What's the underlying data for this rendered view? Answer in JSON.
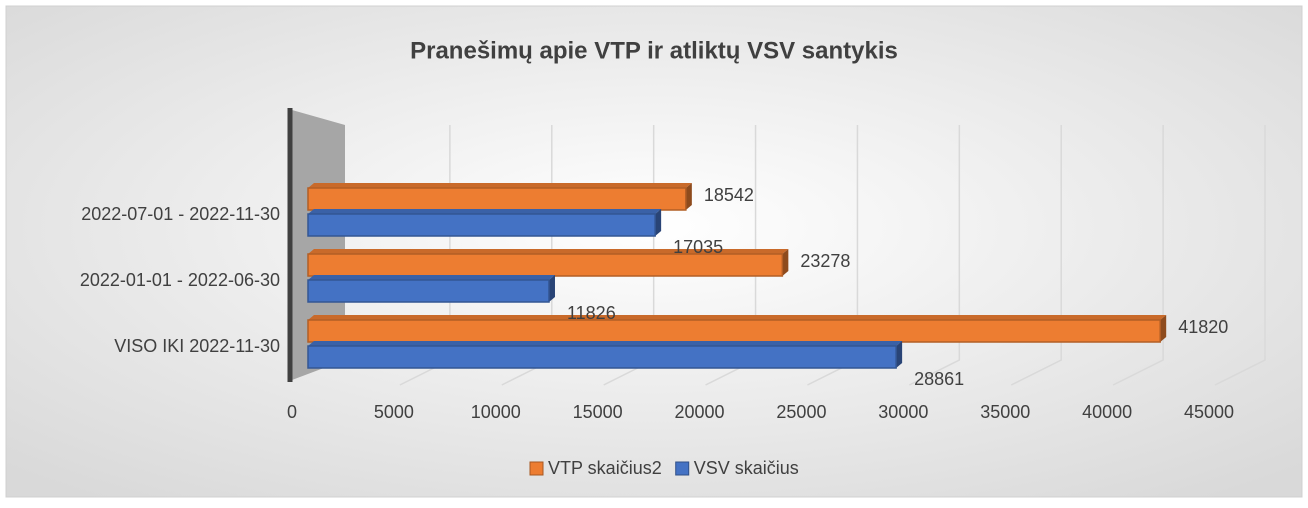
{
  "chart_data": {
    "type": "bar3d_horizontal",
    "title": "Pranešimų apie VTP ir atliktų VSV santykis",
    "categories": [
      "VISO IKI 2022-11-30",
      "2022-01-01 - 2022-06-30",
      "2022-07-01 - 2022-11-30"
    ],
    "series": [
      {
        "name": "VTP skaičius2",
        "color": "#ed7d31",
        "values": [
          41820,
          23278,
          18542
        ]
      },
      {
        "name": "VSV skaičius",
        "color": "#4472c4",
        "values": [
          28861,
          11826,
          17035
        ]
      }
    ],
    "xlim": [
      0,
      45000
    ],
    "xticks": [
      0,
      5000,
      10000,
      15000,
      20000,
      25000,
      30000,
      35000,
      40000,
      45000
    ],
    "grid": true,
    "legend": "bottom"
  }
}
